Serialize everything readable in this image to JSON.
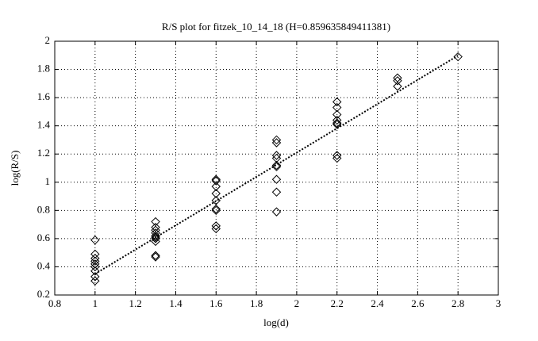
{
  "chart_data": {
    "type": "scatter",
    "title": "R/S plot for fitzek_10_14_18 (H=0.859635849411381)",
    "x_label": "log(d)",
    "y_label": "log(R/S)",
    "xlim": [
      0.8,
      3
    ],
    "ylim": [
      0.2,
      2
    ],
    "xticks": [
      0.8,
      1,
      1.2,
      1.4,
      1.6,
      1.8,
      2,
      2.2,
      2.4,
      2.6,
      2.8,
      3
    ],
    "yticks": [
      0.2,
      0.4,
      0.6,
      0.8,
      1,
      1.2,
      1.4,
      1.6,
      1.8,
      2
    ],
    "grid": true,
    "series": [
      {
        "type": "scatter",
        "marker": "diamond",
        "color": "#000000",
        "x": [
          1,
          1,
          1,
          1,
          1,
          1,
          1,
          1,
          1,
          1.3,
          1.3,
          1.3,
          1.3,
          1.3,
          1.3,
          1.3,
          1.3,
          1.3,
          1.3,
          1.6,
          1.6,
          1.6,
          1.6,
          1.6,
          1.6,
          1.6,
          1.6,
          1.6,
          1.9,
          1.9,
          1.9,
          1.9,
          1.9,
          1.9,
          1.9,
          1.9,
          1.9,
          2.2,
          2.2,
          2.2,
          2.2,
          2.2,
          2.2,
          2.2,
          2.2,
          2.5,
          2.5,
          2.5,
          2.8
        ],
        "values": [
          0.59,
          0.49,
          0.46,
          0.44,
          0.42,
          0.4,
          0.37,
          0.33,
          0.3,
          0.72,
          0.68,
          0.66,
          0.64,
          0.62,
          0.61,
          0.6,
          0.58,
          0.48,
          0.47,
          1.02,
          1.01,
          0.97,
          0.92,
          0.87,
          0.81,
          0.8,
          0.69,
          0.67,
          1.3,
          1.28,
          1.19,
          1.17,
          1.12,
          1.11,
          1.02,
          0.93,
          0.79,
          1.57,
          1.53,
          1.48,
          1.44,
          1.42,
          1.41,
          1.19,
          1.17,
          1.74,
          1.72,
          1.68,
          1.89
        ]
      },
      {
        "type": "line",
        "dash": "dotted",
        "color": "#000000",
        "x": [
          1,
          2.8
        ],
        "values": [
          0.35,
          1.898
        ]
      }
    ]
  }
}
